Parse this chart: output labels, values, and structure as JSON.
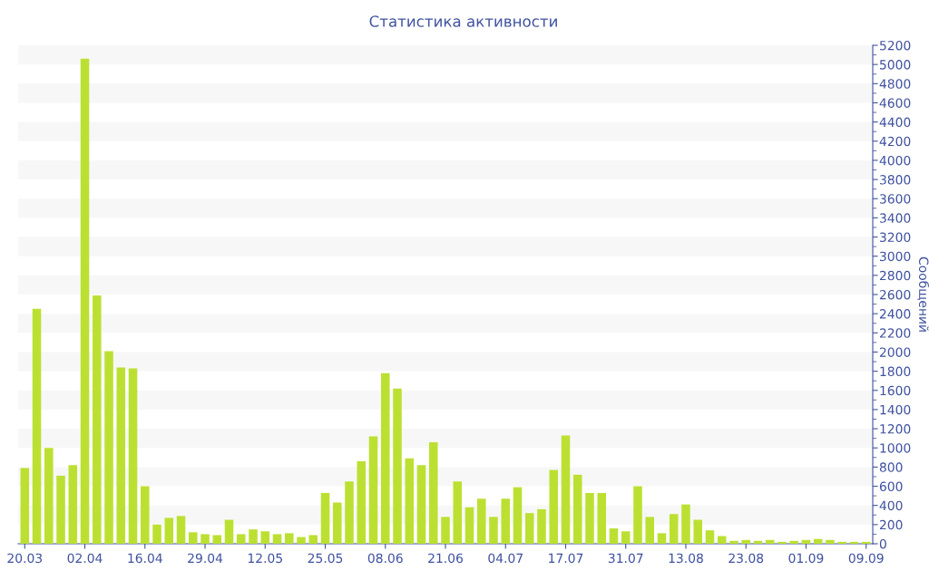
{
  "chart_data": {
    "type": "bar",
    "title": "Статистика активности",
    "ylabel": "Сообщений",
    "categories": [
      "20.03",
      null,
      null,
      null,
      null,
      "02.04",
      null,
      null,
      null,
      null,
      "16.04",
      null,
      null,
      null,
      null,
      "29.04",
      null,
      null,
      null,
      null,
      "12.05",
      null,
      null,
      null,
      null,
      "25.05",
      null,
      null,
      null,
      null,
      "08.06",
      null,
      null,
      null,
      null,
      "21.06",
      null,
      null,
      null,
      null,
      "04.07",
      null,
      null,
      null,
      null,
      "17.07",
      null,
      null,
      null,
      null,
      "31.07",
      null,
      null,
      null,
      null,
      "13.08",
      null,
      null,
      null,
      null,
      "23.08",
      null,
      null,
      null,
      null,
      "01.09",
      null,
      null,
      null,
      null,
      "09.09"
    ],
    "values": [
      790,
      2450,
      1000,
      710,
      820,
      5060,
      2590,
      2010,
      1840,
      1830,
      600,
      200,
      270,
      290,
      120,
      100,
      90,
      250,
      100,
      150,
      130,
      100,
      110,
      70,
      90,
      530,
      430,
      650,
      860,
      1120,
      1780,
      1620,
      890,
      820,
      1060,
      280,
      650,
      380,
      470,
      280,
      470,
      590,
      320,
      360,
      770,
      1130,
      720,
      530,
      530,
      160,
      130,
      600,
      280,
      110,
      310,
      410,
      250,
      140,
      80,
      30,
      40,
      30,
      40,
      20,
      30,
      40,
      50,
      40,
      20,
      20,
      20
    ],
    "color": "#bce032",
    "ylim": [
      0,
      5200
    ],
    "yticks": [
      0,
      {
        "value": 100,
        "label": null
      },
      200,
      {
        "value": 300,
        "label": null
      },
      400,
      {
        "value": 500,
        "label": null
      },
      600,
      {
        "value": 700,
        "label": null
      },
      800,
      {
        "value": 900,
        "label": null
      },
      1000,
      {
        "value": 1100,
        "label": null
      },
      1200,
      {
        "value": 1300,
        "label": null
      },
      1400,
      {
        "value": 1500,
        "label": null
      },
      1600,
      {
        "value": 1700,
        "label": null
      },
      1800,
      {
        "value": 1900,
        "label": null
      },
      2000,
      {
        "value": 2100,
        "label": null
      },
      2200,
      {
        "value": 2300,
        "label": null
      },
      2400,
      {
        "value": 2500,
        "label": null
      },
      2600,
      {
        "value": 2700,
        "label": null
      },
      2800,
      {
        "value": 2900,
        "label": null
      },
      3000,
      {
        "value": 3100,
        "label": null
      },
      3200,
      {
        "value": 3300,
        "label": null
      },
      3400,
      {
        "value": 3500,
        "label": null
      },
      3600,
      {
        "value": 3700,
        "label": null
      },
      3800,
      {
        "value": 3900,
        "label": null
      },
      4000,
      {
        "value": 4100,
        "label": null
      },
      4200,
      {
        "value": 4300,
        "label": null
      },
      4400,
      {
        "value": 4500,
        "label": null
      },
      4600,
      {
        "value": 4700,
        "label": null
      },
      4800,
      {
        "value": 4900,
        "label": null
      },
      5000,
      {
        "value": 5100,
        "label": null
      },
      5200
    ],
    "bands": [
      {
        "axis": "y",
        "from": 200,
        "to": 400,
        "color": "#f7f7f7"
      },
      {
        "axis": "y",
        "from": 600,
        "to": 800,
        "color": "#f7f7f7"
      },
      {
        "axis": "y",
        "from": 1000,
        "to": 1200,
        "color": "#f7f7f7"
      },
      {
        "axis": "y",
        "from": 1400,
        "to": 1600,
        "color": "#f7f7f7"
      },
      {
        "axis": "y",
        "from": 1800,
        "to": 2000,
        "color": "#f7f7f7"
      },
      {
        "axis": "y",
        "from": 2200,
        "to": 2400,
        "color": "#f7f7f7"
      },
      {
        "axis": "y",
        "from": 2600,
        "to": 2800,
        "color": "#f7f7f7"
      },
      {
        "axis": "y",
        "from": 3000,
        "to": 3200,
        "color": "#f7f7f7"
      },
      {
        "axis": "y",
        "from": 3400,
        "to": 3600,
        "color": "#f7f7f7"
      },
      {
        "axis": "y",
        "from": 3800,
        "to": 4000,
        "color": "#f7f7f7"
      },
      {
        "axis": "y",
        "from": 4200,
        "to": 4400,
        "color": "#f7f7f7"
      },
      {
        "axis": "y",
        "from": 4600,
        "to": 4800,
        "color": "#f7f7f7"
      },
      {
        "axis": "y",
        "from": 5000,
        "to": 5200,
        "color": "#f7f7f7"
      }
    ]
  }
}
